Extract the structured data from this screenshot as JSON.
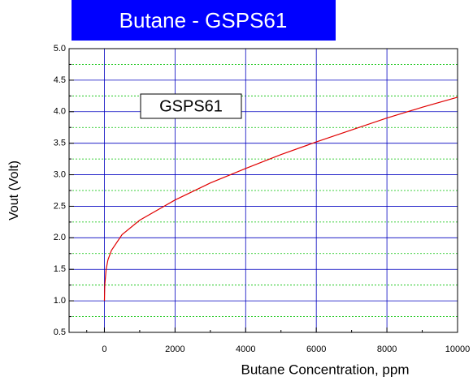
{
  "chart_data": {
    "type": "line",
    "title": "Butane - GSPS61",
    "annotation": "GSPS61",
    "x_label": "Butane Concentration, ppm",
    "y_label": "Vout (Volt)",
    "x": [
      0,
      10,
      50,
      100,
      200,
      500,
      1000,
      2000,
      3000,
      4000,
      5000,
      6000,
      7000,
      8000,
      9000,
      10000
    ],
    "series": [
      {
        "name": "GSPS61",
        "color": "#e00000",
        "values": [
          1.0,
          1.25,
          1.5,
          1.65,
          1.8,
          2.05,
          2.28,
          2.6,
          2.87,
          3.1,
          3.32,
          3.52,
          3.71,
          3.9,
          4.07,
          4.23
        ]
      }
    ],
    "xlim": [
      -1000,
      10000
    ],
    "xticks": [
      0,
      2000,
      4000,
      6000,
      8000,
      10000
    ],
    "ylim": [
      0.5,
      5.0
    ],
    "yticks": [
      0.5,
      {
        "value": 1.0,
        "label": "1.0"
      },
      1.5,
      {
        "value": 2.0,
        "label": "2.0"
      },
      2.5,
      {
        "value": 3.0,
        "label": "3.0"
      },
      3.5,
      {
        "value": 4.0,
        "label": "4.0"
      },
      4.5,
      {
        "value": 5.0,
        "label": "5.0"
      }
    ],
    "grid": true,
    "grid_color": "#0000c0",
    "minor_grid_color": "#00c000"
  }
}
